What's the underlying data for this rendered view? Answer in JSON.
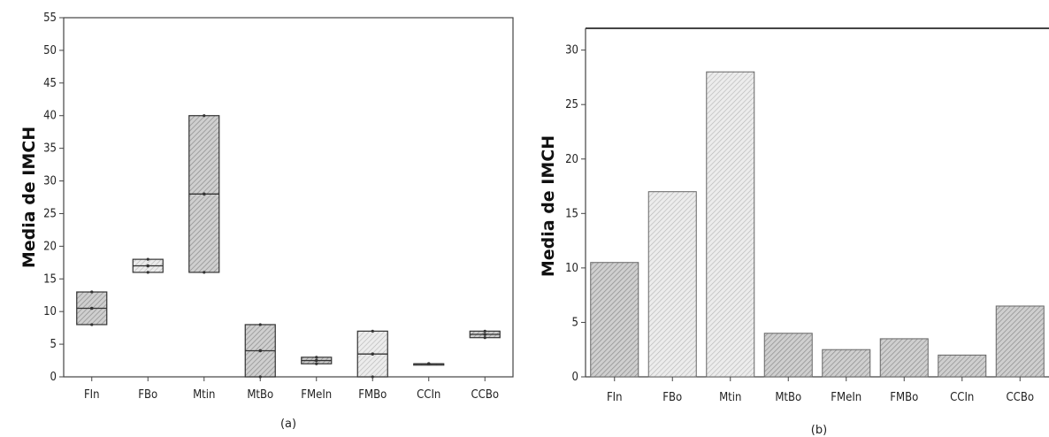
{
  "chart_data": [
    {
      "type": "boxplot",
      "caption": "(a)",
      "ylabel": "Media de IMCH",
      "ylim": [
        0,
        55
      ],
      "yticks": [
        0,
        5,
        10,
        15,
        20,
        25,
        30,
        35,
        40,
        45,
        50,
        55
      ],
      "categories": [
        "FIn",
        "FBo",
        "Mtin",
        "MtBo",
        "FMeIn",
        "FMBo",
        "CCIn",
        "CCBo"
      ],
      "boxes": [
        {
          "min": 8,
          "median": 10.5,
          "max": 13
        },
        {
          "min": 16,
          "median": 17,
          "max": 18
        },
        {
          "min": 16,
          "median": 28,
          "max": 40
        },
        {
          "min": 0,
          "median": 4,
          "max": 8
        },
        {
          "min": 2,
          "median": 2.5,
          "max": 3
        },
        {
          "min": 0,
          "median": 3.5,
          "max": 7
        },
        {
          "min": 2,
          "median": 2,
          "max": 2
        },
        {
          "min": 6,
          "median": 6.5,
          "max": 7
        }
      ]
    },
    {
      "type": "bar",
      "caption": "(b)",
      "ylabel": "Media de IMCH",
      "ylim": [
        0,
        32
      ],
      "yticks": [
        0,
        5,
        10,
        15,
        20,
        25,
        30
      ],
      "categories": [
        "FIn",
        "FBo",
        "Mtin",
        "MtBo",
        "FMeIn",
        "FMBo",
        "CCIn",
        "CCBo"
      ],
      "values": [
        10.5,
        17,
        28,
        4,
        2.5,
        3.5,
        2,
        6.5
      ]
    }
  ]
}
